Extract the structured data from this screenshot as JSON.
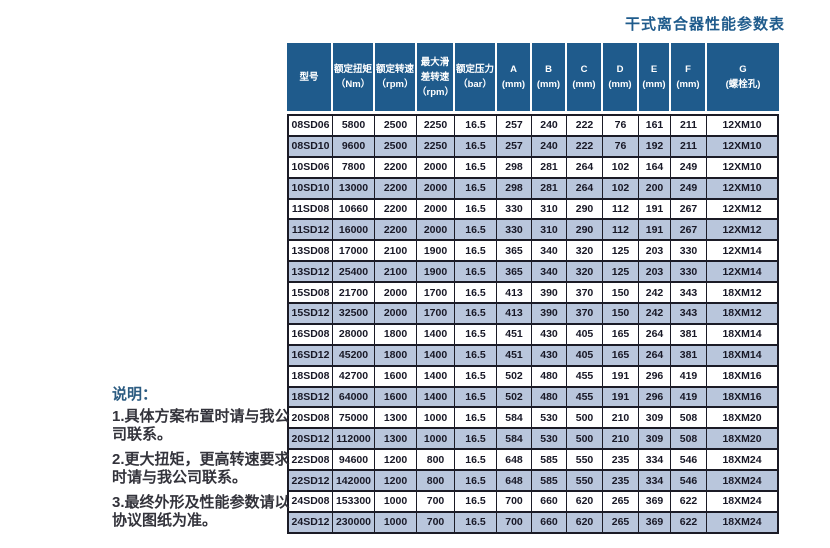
{
  "title": "干式离合器性能参数表",
  "table": {
    "columns": [
      {
        "id": "model",
        "lines": [
          "型号"
        ]
      },
      {
        "id": "rated-torque",
        "lines": [
          "额定扭矩",
          "（Nm）"
        ]
      },
      {
        "id": "rated-speed",
        "lines": [
          "额定转速",
          "（rpm）"
        ]
      },
      {
        "id": "max-slip-speed",
        "lines": [
          "最大滑",
          "差转速",
          "（rpm）"
        ]
      },
      {
        "id": "rated-pressure",
        "lines": [
          "额定压力",
          "（bar）"
        ]
      },
      {
        "id": "dim-a",
        "lines": [
          "A",
          "(mm)"
        ]
      },
      {
        "id": "dim-b",
        "lines": [
          "B",
          "(mm)"
        ]
      },
      {
        "id": "dim-c",
        "lines": [
          "C",
          "(mm)"
        ]
      },
      {
        "id": "dim-d",
        "lines": [
          "D",
          "(mm)"
        ]
      },
      {
        "id": "dim-e",
        "lines": [
          "E",
          "(mm)"
        ]
      },
      {
        "id": "dim-f",
        "lines": [
          "F",
          "(mm)"
        ]
      },
      {
        "id": "dim-g",
        "lines": [
          "G",
          "(螺栓孔)"
        ]
      }
    ],
    "rows": [
      [
        "08SD06",
        "5800",
        "2500",
        "2250",
        "16.5",
        "257",
        "240",
        "222",
        "76",
        "161",
        "211",
        "12XM10"
      ],
      [
        "08SD10",
        "9600",
        "2500",
        "2250",
        "16.5",
        "257",
        "240",
        "222",
        "76",
        "192",
        "211",
        "12XM10"
      ],
      [
        "10SD06",
        "7800",
        "2200",
        "2000",
        "16.5",
        "298",
        "281",
        "264",
        "102",
        "164",
        "249",
        "12XM10"
      ],
      [
        "10SD10",
        "13000",
        "2200",
        "2000",
        "16.5",
        "298",
        "281",
        "264",
        "102",
        "200",
        "249",
        "12XM10"
      ],
      [
        "11SD08",
        "10660",
        "2200",
        "2000",
        "16.5",
        "330",
        "310",
        "290",
        "112",
        "191",
        "267",
        "12XM12"
      ],
      [
        "11SD12",
        "16000",
        "2200",
        "2000",
        "16.5",
        "330",
        "310",
        "290",
        "112",
        "191",
        "267",
        "12XM12"
      ],
      [
        "13SD08",
        "17000",
        "2100",
        "1900",
        "16.5",
        "365",
        "340",
        "320",
        "125",
        "203",
        "330",
        "12XM14"
      ],
      [
        "13SD12",
        "25400",
        "2100",
        "1900",
        "16.5",
        "365",
        "340",
        "320",
        "125",
        "203",
        "330",
        "12XM14"
      ],
      [
        "15SD08",
        "21700",
        "2000",
        "1700",
        "16.5",
        "413",
        "390",
        "370",
        "150",
        "242",
        "343",
        "18XM12"
      ],
      [
        "15SD12",
        "32500",
        "2000",
        "1700",
        "16.5",
        "413",
        "390",
        "370",
        "150",
        "242",
        "343",
        "18XM12"
      ],
      [
        "16SD08",
        "28000",
        "1800",
        "1400",
        "16.5",
        "451",
        "430",
        "405",
        "165",
        "264",
        "381",
        "18XM14"
      ],
      [
        "16SD12",
        "45200",
        "1800",
        "1400",
        "16.5",
        "451",
        "430",
        "405",
        "165",
        "264",
        "381",
        "18XM14"
      ],
      [
        "18SD08",
        "42700",
        "1600",
        "1400",
        "16.5",
        "502",
        "480",
        "455",
        "191",
        "296",
        "419",
        "18XM16"
      ],
      [
        "18SD12",
        "64000",
        "1600",
        "1400",
        "16.5",
        "502",
        "480",
        "455",
        "191",
        "296",
        "419",
        "18XM16"
      ],
      [
        "20SD08",
        "75000",
        "1300",
        "1000",
        "16.5",
        "584",
        "530",
        "500",
        "210",
        "309",
        "508",
        "18XM20"
      ],
      [
        "20SD12",
        "112000",
        "1300",
        "1000",
        "16.5",
        "584",
        "530",
        "500",
        "210",
        "309",
        "508",
        "18XM20"
      ],
      [
        "22SD08",
        "94600",
        "1200",
        "800",
        "16.5",
        "648",
        "585",
        "550",
        "235",
        "334",
        "546",
        "18XM24"
      ],
      [
        "22SD12",
        "142000",
        "1200",
        "800",
        "16.5",
        "648",
        "585",
        "550",
        "235",
        "334",
        "546",
        "18XM24"
      ],
      [
        "24SD08",
        "153300",
        "1000",
        "700",
        "16.5",
        "700",
        "660",
        "620",
        "265",
        "369",
        "622",
        "18XM24"
      ],
      [
        "24SD12",
        "230000",
        "1000",
        "700",
        "16.5",
        "700",
        "660",
        "620",
        "265",
        "369",
        "622",
        "18XM24"
      ]
    ]
  },
  "notes": {
    "title": "说明：",
    "items": [
      "1.具体方案布置时请与我公司联系。",
      "2.更大扭矩，更高转速要求时请与我公司联系。",
      "3.最终外形及性能参数请以协议图纸为准。"
    ]
  },
  "colors": {
    "header_bg": "#1f5b8c",
    "stripe_bg": "#b9c6dc",
    "border": "#1b1b26",
    "title_text": "#1f5b8c"
  }
}
